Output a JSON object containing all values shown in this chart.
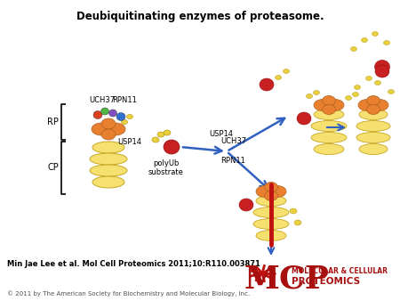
{
  "title": "Deubiquitinating enzymes of proteasome.",
  "title_fontsize": 8.5,
  "title_fontweight": "bold",
  "citation": "Min Jae Lee et al. Mol Cell Proteomics 2011;10:R110.003871",
  "citation_fontsize": 6.0,
  "citation_fontweight": "bold",
  "copyright": "© 2011 by The American Society for Biochemistry and Molecular Biology, Inc.",
  "copyright_fontsize": 5.0,
  "mcp_text": "MCP",
  "mcp_color": "#a81010",
  "mcp_subtitle1": "MOLECULAR & CELLULAR",
  "mcp_subtitle2": "PROTEOMICS",
  "mcp_subtitle_color": "#a81010",
  "label_rp": "RP",
  "label_cp": "CP",
  "label_uch37_left": "UCH37",
  "label_rpn11_left": "RPN11",
  "label_usp14_left": "USP14",
  "label_usp14_right": "USP14",
  "label_uch37_right": "UCH37",
  "label_rpn11_right": "RPN11",
  "label_polyub": "polyUb\nsubstrate",
  "bg_color": "#ffffff",
  "arrow_color": "#3060c0",
  "barrel_color": "#f5e070",
  "barrel_edge": "#c8a820",
  "cap_color": "#e88030",
  "cap_edge": "#b06020",
  "ub_color": "#c82020",
  "ub_edge": "#901010",
  "chain_color": "#e8d040",
  "chain_edge": "#b09000",
  "label_fontsize": 7,
  "label_fontsize_small": 6
}
